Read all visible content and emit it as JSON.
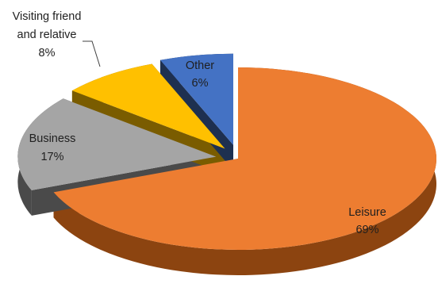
{
  "chart_data": {
    "type": "pie",
    "title": "",
    "slices": [
      {
        "category": "Leisure",
        "value": 69,
        "value_label": "69%",
        "color": "#ED7D31",
        "side_color": "#8C4410",
        "label_color": "#1F1F1F"
      },
      {
        "category": "Business",
        "value": 17,
        "value_label": "17%",
        "color": "#A5A5A5",
        "side_color": "#4A4A4A",
        "label_color": "#1F1F1F"
      },
      {
        "category": "Visiting friend and relative",
        "value": 8,
        "value_label": "8%",
        "color": "#FFC000",
        "side_color": "#7A5C00",
        "label_color": "#1F1F1F"
      },
      {
        "category": "Other",
        "value": 6,
        "value_label": "6%",
        "color": "#4472C4",
        "side_color": "#1E3050",
        "label_color": "#1F1F1F"
      }
    ],
    "style": "3D exploded pie",
    "legend": "none"
  }
}
